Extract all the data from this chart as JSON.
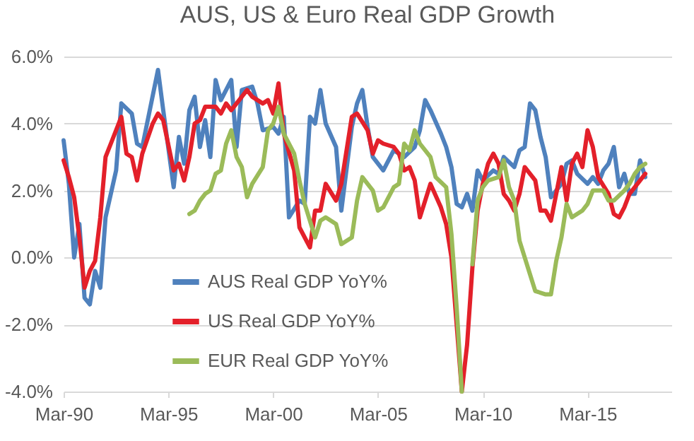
{
  "chart_data": {
    "type": "line",
    "title": "AUS, US & Euro Real GDP Growth",
    "xlim": [
      "1990-03",
      "2019-03"
    ],
    "xticks": [
      {
        "value": "1990-03",
        "label": "Mar-90"
      },
      {
        "value": "1995-03",
        "label": "Mar-95"
      },
      {
        "value": "2000-03",
        "label": "Mar-00"
      },
      {
        "value": "2005-03",
        "label": "Mar-05"
      },
      {
        "value": "2010-03",
        "label": "Mar-10"
      },
      {
        "value": "2015-03",
        "label": "Mar-15"
      }
    ],
    "ylim": [
      -4,
      6
    ],
    "yticks": [
      {
        "value": -4,
        "label": "-4.0%"
      },
      {
        "value": -2,
        "label": "-2.0%"
      },
      {
        "value": 0,
        "label": "0.0%"
      },
      {
        "value": 2,
        "label": "2.0%"
      },
      {
        "value": 4,
        "label": "4.0%"
      },
      {
        "value": 6,
        "label": "6.0%"
      }
    ],
    "grid": "y",
    "legend": "bottom left",
    "marker": "none",
    "line_style": "solid",
    "series": [
      {
        "name": "AUS Real GDP YoY%",
        "color": "#4f81bd",
        "x": [
          "1990-03",
          "1990-06",
          "1990-09",
          "1990-12",
          "1991-03",
          "1991-06",
          "1991-09",
          "1991-12",
          "1992-03",
          "1992-09",
          "1992-12",
          "1993-06",
          "1993-09",
          "1993-12",
          "1994-09",
          "1994-12",
          "1995-06",
          "1995-09",
          "1995-12",
          "1996-03",
          "1996-06",
          "1996-09",
          "1996-12",
          "1997-03",
          "1997-06",
          "1997-09",
          "1998-03",
          "1998-06",
          "1998-09",
          "1999-03",
          "1999-06",
          "1999-09",
          "2000-03",
          "2000-06",
          "2000-09",
          "2000-12",
          "2001-06",
          "2001-09",
          "2001-12",
          "2002-03",
          "2002-06",
          "2002-09",
          "2003-03",
          "2003-06",
          "2003-12",
          "2004-03",
          "2004-06",
          "2004-09",
          "2004-12",
          "2005-06",
          "2005-12",
          "2006-06",
          "2006-12",
          "2007-03",
          "2007-06",
          "2007-09",
          "2008-03",
          "2008-06",
          "2008-09",
          "2008-12",
          "2009-03",
          "2009-06",
          "2009-09",
          "2009-12",
          "2010-03",
          "2010-09",
          "2010-12",
          "2011-03",
          "2011-09",
          "2011-12",
          "2012-03",
          "2012-06",
          "2012-09",
          "2012-12",
          "2013-03",
          "2013-06",
          "2013-12",
          "2014-03",
          "2014-06",
          "2014-09",
          "2015-03",
          "2015-06",
          "2015-09",
          "2015-12",
          "2016-03",
          "2016-06",
          "2016-09",
          "2016-12",
          "2017-03",
          "2017-06",
          "2017-09",
          "2017-12"
        ],
        "values": [
          3.5,
          2.2,
          0.0,
          1.0,
          -1.2,
          -1.4,
          -0.4,
          -0.9,
          1.2,
          2.6,
          4.6,
          4.3,
          3.4,
          3.3,
          5.6,
          4.4,
          2.1,
          3.6,
          2.8,
          4.4,
          4.8,
          3.3,
          4.1,
          3.0,
          5.3,
          4.7,
          5.3,
          3.3,
          5.0,
          5.1,
          4.6,
          3.8,
          3.9,
          3.7,
          4.2,
          1.2,
          1.7,
          1.6,
          4.2,
          4.0,
          5.0,
          4.0,
          3.3,
          1.4,
          3.9,
          4.6,
          5.0,
          3.9,
          3.0,
          2.6,
          3.2,
          3.0,
          3.3,
          3.8,
          4.7,
          4.4,
          3.7,
          3.3,
          2.7,
          1.6,
          1.5,
          1.9,
          1.4,
          2.6,
          2.3,
          2.6,
          2.5,
          3.0,
          2.7,
          3.2,
          3.3,
          4.6,
          4.4,
          3.6,
          3.0,
          1.8,
          2.2,
          2.8,
          2.9,
          2.5,
          2.2,
          2.4,
          2.2,
          2.6,
          2.8,
          3.3,
          2.1,
          2.5,
          1.9,
          1.9,
          2.9,
          2.4
        ]
      },
      {
        "name": "US Real GDP YoY%",
        "color": "#e3202a",
        "x": [
          "1990-03",
          "1990-06",
          "1990-09",
          "1990-12",
          "1991-03",
          "1991-06",
          "1991-09",
          "1991-12",
          "1992-03",
          "1992-06",
          "1992-12",
          "1993-03",
          "1993-06",
          "1993-09",
          "1993-12",
          "1994-06",
          "1994-09",
          "1994-12",
          "1995-06",
          "1995-09",
          "1995-12",
          "1996-03",
          "1996-06",
          "1996-09",
          "1996-12",
          "1997-06",
          "1997-09",
          "1997-12",
          "1998-03",
          "1998-06",
          "1998-12",
          "1999-03",
          "1999-09",
          "1999-12",
          "2000-03",
          "2000-06",
          "2000-09",
          "2001-03",
          "2001-06",
          "2001-12",
          "2002-03",
          "2002-06",
          "2002-09",
          "2003-03",
          "2003-06",
          "2003-12",
          "2004-03",
          "2004-09",
          "2004-12",
          "2005-03",
          "2005-06",
          "2005-12",
          "2006-03",
          "2006-06",
          "2006-09",
          "2006-12",
          "2007-03",
          "2007-06",
          "2007-09",
          "2008-03",
          "2008-06",
          "2008-09",
          "2008-12",
          "2009-03",
          "2009-06",
          "2009-09",
          "2009-12",
          "2010-03",
          "2010-06",
          "2010-09",
          "2010-12",
          "2011-03",
          "2011-06",
          "2011-09",
          "2011-12",
          "2012-03",
          "2012-06",
          "2012-09",
          "2012-12",
          "2013-03",
          "2013-06",
          "2013-09",
          "2013-12",
          "2014-03",
          "2014-06",
          "2014-09",
          "2014-12",
          "2015-03",
          "2015-06",
          "2015-09",
          "2016-03",
          "2016-06",
          "2016-09",
          "2016-12",
          "2017-03",
          "2017-06",
          "2017-09",
          "2017-12"
        ],
        "values": [
          2.9,
          2.4,
          1.8,
          0.6,
          -0.9,
          -0.4,
          -0.1,
          1.2,
          3.0,
          3.4,
          4.2,
          3.1,
          3.0,
          2.3,
          3.1,
          4.0,
          4.3,
          4.1,
          2.6,
          2.8,
          2.3,
          3.0,
          4.0,
          4.1,
          4.5,
          4.5,
          4.3,
          4.6,
          4.4,
          4.6,
          5.0,
          4.8,
          4.6,
          4.7,
          4.3,
          5.2,
          3.7,
          2.6,
          0.9,
          0.3,
          1.4,
          1.4,
          2.2,
          1.7,
          2.2,
          4.2,
          4.3,
          3.8,
          3.1,
          3.5,
          3.4,
          3.3,
          3.1,
          2.6,
          2.7,
          2.3,
          1.2,
          1.7,
          2.2,
          1.5,
          1.0,
          0.0,
          -2.0,
          -4.0,
          -2.6,
          -0.3,
          1.4,
          2.2,
          2.8,
          3.1,
          2.8,
          1.9,
          1.7,
          1.4,
          1.9,
          2.7,
          2.5,
          2.3,
          1.4,
          1.4,
          1.1,
          1.9,
          2.7,
          1.7,
          2.8,
          3.1,
          2.7,
          3.8,
          3.3,
          2.4,
          1.9,
          1.3,
          1.2,
          1.5,
          1.9,
          2.1,
          2.3,
          2.5
        ]
      },
      {
        "name": "EUR Real GDP YoY%",
        "color": "#9bbb59",
        "x": [
          "1996-03",
          "1996-06",
          "1996-09",
          "1996-12",
          "1997-03",
          "1997-06",
          "1997-09",
          "1997-12",
          "1998-03",
          "1998-06",
          "1998-09",
          "1998-12",
          "1999-03",
          "1999-09",
          "1999-12",
          "2000-03",
          "2000-06",
          "2000-09",
          "2001-03",
          "2001-06",
          "2001-09",
          "2002-03",
          "2002-06",
          "2002-09",
          "2003-03",
          "2003-06",
          "2003-12",
          "2004-03",
          "2004-06",
          "2004-12",
          "2005-03",
          "2005-06",
          "2005-12",
          "2006-03",
          "2006-06",
          "2006-09",
          "2006-12",
          "2007-03",
          "2007-09",
          "2007-12",
          "2008-06",
          "2008-09",
          "2008-12",
          "2009-03",
          "2009-06",
          "2009-09",
          "2009-12",
          "2010-03",
          "2010-06",
          "2010-12",
          "2011-03",
          "2011-06",
          "2011-09",
          "2011-12",
          "2012-06",
          "2012-09",
          "2013-03",
          "2013-06",
          "2013-09",
          "2013-12",
          "2014-03",
          "2014-06",
          "2014-12",
          "2015-03",
          "2015-06",
          "2015-12",
          "2016-03",
          "2016-06",
          "2016-12",
          "2017-03",
          "2017-06",
          "2017-09",
          "2017-12"
        ],
        "values": [
          1.3,
          1.4,
          1.7,
          1.9,
          2.0,
          2.5,
          2.6,
          3.4,
          3.8,
          3.0,
          2.7,
          1.8,
          2.2,
          2.7,
          3.8,
          4.0,
          4.5,
          3.7,
          3.1,
          2.3,
          1.6,
          0.6,
          1.1,
          1.2,
          1.0,
          0.4,
          0.6,
          1.7,
          2.4,
          2.0,
          1.4,
          1.5,
          2.1,
          2.2,
          3.4,
          3.2,
          3.8,
          3.4,
          3.0,
          2.4,
          2.1,
          0.7,
          -1.5,
          -4.0,
          null,
          -0.2,
          1.7,
          2.1,
          2.3,
          2.4,
          2.9,
          2.1,
          1.7,
          0.5,
          -0.5,
          -1.0,
          -1.1,
          -1.1,
          -0.1,
          0.6,
          1.6,
          1.2,
          1.4,
          1.6,
          2.0,
          2.0,
          1.7,
          1.7,
          2.0,
          2.2,
          2.5,
          2.7,
          2.8
        ]
      }
    ]
  }
}
